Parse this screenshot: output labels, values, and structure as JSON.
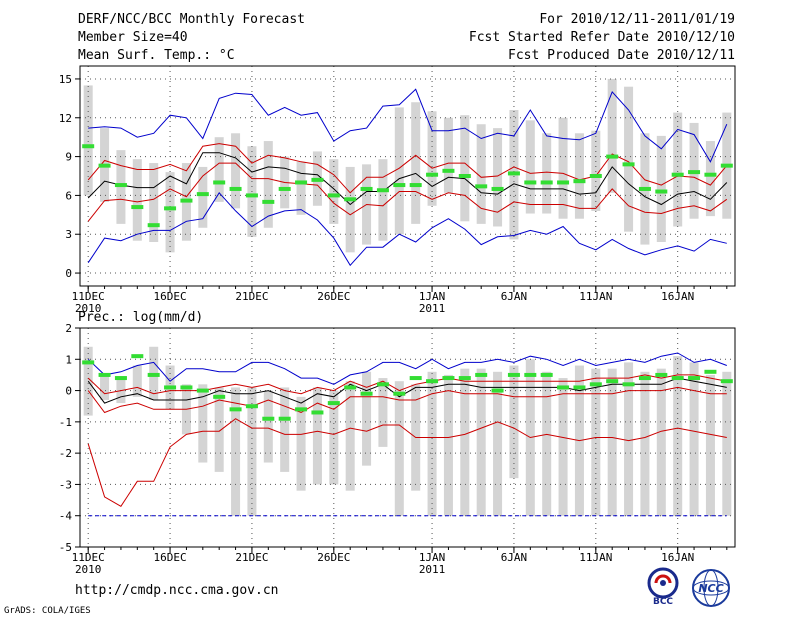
{
  "header": {
    "title": "DERF/NCC/BCC Monthly Forecast",
    "member_size": "Member Size=40",
    "variable": "Mean Surf. Temp.: °C",
    "for_range": "For 2010/12/11-2011/01/19",
    "fcst_started": "Fcst Started Refer Date 2010/12/10",
    "fcst_produced": "Fcst Produced Date 2010/12/11"
  },
  "footer": {
    "url": "http://cmdp.ncc.cma.gov.cn",
    "grads": "GrADS: COLA/IGES",
    "logo_bcc": "BCC",
    "logo_ncc": "NCC"
  },
  "colors": {
    "box": "#d4d4d4",
    "mean": "#000000",
    "spread": "#cc0000",
    "envelope": "#0000cc",
    "obs": "#33dd33",
    "grid": "#555555"
  },
  "chart_data": [
    {
      "type": "line",
      "title": "Mean Surf. Temp.: °C",
      "days": 40,
      "x_ticks": [
        {
          "day": 1,
          "label": "11DEC",
          "sub": "2010"
        },
        {
          "day": 6,
          "label": "16DEC",
          "sub": ""
        },
        {
          "day": 11,
          "label": "21DEC",
          "sub": ""
        },
        {
          "day": 16,
          "label": "26DEC",
          "sub": ""
        },
        {
          "day": 22,
          "label": "1JAN",
          "sub": "2011"
        },
        {
          "day": 27,
          "label": "6JAN",
          "sub": ""
        },
        {
          "day": 32,
          "label": "11JAN",
          "sub": ""
        },
        {
          "day": 37,
          "label": "16JAN",
          "sub": ""
        }
      ],
      "ylim": [
        -1,
        16
      ],
      "y_ticks": [
        0,
        3,
        6,
        9,
        12,
        15
      ],
      "series": [
        {
          "name": "box_top",
          "values": [
            14.5,
            11.2,
            9.5,
            8.8,
            8.5,
            7.8,
            8.5,
            8.2,
            10.5,
            10.8,
            9.8,
            10.2,
            9.0,
            8.6,
            9.4,
            8.8,
            8.2,
            8.4,
            8.8,
            12.8,
            13.2,
            12.5,
            12.0,
            12.2,
            11.5,
            11.2,
            12.6,
            11.8,
            10.8,
            12.0,
            10.8,
            11.0,
            15.0,
            14.4,
            10.8,
            10.6,
            12.4,
            11.6,
            10.2,
            12.4
          ]
        },
        {
          "name": "box_bottom",
          "values": [
            6.0,
            5.5,
            3.8,
            2.5,
            2.4,
            1.6,
            2.5,
            3.5,
            5.5,
            5.0,
            2.8,
            3.5,
            5.0,
            4.5,
            5.2,
            3.8,
            1.6,
            2.2,
            2.5,
            3.0,
            3.8,
            5.2,
            6.2,
            4.0,
            3.8,
            3.6,
            2.6,
            4.6,
            4.6,
            4.2,
            4.2,
            4.8,
            6.2,
            3.2,
            2.2,
            2.4,
            3.6,
            4.2,
            4.4,
            4.2
          ]
        },
        {
          "name": "max",
          "values": [
            0.8,
            2.7,
            2.5,
            3.0,
            3.3,
            3.3,
            4.0,
            4.2,
            6.2,
            4.8,
            3.6,
            4.4,
            4.8,
            4.9,
            4.1,
            2.7,
            0.6,
            2.0,
            2.0,
            3.0,
            2.4,
            3.5,
            4.2,
            3.4,
            2.2,
            2.8,
            2.9,
            3.3,
            3.0,
            3.6,
            2.3,
            1.8,
            2.6,
            1.9,
            1.4,
            1.8,
            2.1,
            1.7,
            2.6,
            2.3
          ]
        },
        {
          "name": "max",
          "values": [
            11.2,
            11.3,
            11.2,
            10.5,
            10.8,
            12.2,
            12.0,
            10.4,
            13.5,
            13.9,
            13.8,
            12.2,
            12.8,
            12.2,
            12.4,
            10.2,
            11.0,
            11.2,
            12.9,
            13.0,
            14.2,
            11.0,
            11.0,
            11.2,
            10.4,
            10.8,
            10.6,
            12.6,
            10.6,
            10.4,
            10.3,
            10.8,
            14.0,
            12.6,
            10.6,
            9.6,
            11.1,
            10.7,
            8.6,
            11.5
          ]
        },
        {
          "name": "mean_minus",
          "values": [
            4.0,
            5.6,
            5.7,
            5.5,
            5.7,
            6.5,
            5.9,
            7.5,
            8.5,
            8.5,
            7.3,
            7.3,
            7.0,
            6.9,
            6.8,
            5.4,
            4.5,
            5.3,
            5.2,
            6.3,
            6.3,
            5.7,
            6.2,
            6.0,
            5.0,
            4.7,
            5.5,
            5.3,
            5.3,
            5.3,
            5.0,
            5.0,
            6.5,
            5.2,
            4.7,
            4.6,
            5.0,
            5.2,
            4.8,
            5.7
          ]
        },
        {
          "name": "mean_plus",
          "values": [
            7.2,
            8.7,
            8.3,
            8.0,
            8.0,
            8.4,
            7.9,
            9.8,
            10.0,
            9.8,
            8.5,
            9.1,
            8.9,
            8.6,
            8.4,
            7.6,
            6.2,
            7.4,
            7.4,
            8.1,
            9.1,
            8.1,
            8.5,
            8.5,
            7.4,
            7.5,
            8.2,
            7.7,
            7.8,
            7.7,
            7.2,
            7.5,
            9.2,
            8.6,
            7.2,
            6.8,
            7.5,
            7.4,
            6.8,
            8.3
          ]
        },
        {
          "name": "mean",
          "values": [
            5.8,
            7.1,
            6.8,
            6.6,
            6.6,
            7.5,
            6.9,
            9.3,
            9.3,
            8.9,
            7.8,
            8.2,
            8.1,
            7.7,
            7.6,
            6.5,
            5.3,
            6.3,
            6.3,
            7.3,
            7.7,
            6.7,
            7.4,
            7.3,
            6.2,
            6.1,
            6.9,
            6.5,
            6.5,
            6.5,
            6.1,
            6.2,
            8.2,
            6.9,
            5.9,
            5.3,
            6.1,
            6.3,
            5.7,
            7.0
          ]
        },
        {
          "name": "obs",
          "values": [
            9.8,
            8.3,
            6.8,
            5.1,
            3.7,
            5.0,
            5.6,
            6.1,
            7.0,
            6.5,
            6.0,
            5.5,
            6.5,
            7.0,
            7.2,
            6.0,
            5.7,
            6.5,
            6.4,
            6.8,
            6.8,
            7.6,
            7.9,
            7.5,
            6.7,
            6.5,
            7.7,
            7.0,
            7.0,
            7.0,
            7.1,
            7.5,
            9.0,
            8.4,
            6.5,
            6.3,
            7.6,
            7.8,
            7.6,
            8.3
          ]
        }
      ]
    },
    {
      "type": "line",
      "title": "Prec.: log(mm/d)",
      "days": 40,
      "x_ticks": [
        {
          "day": 1,
          "label": "11DEC",
          "sub": "2010"
        },
        {
          "day": 6,
          "label": "16DEC",
          "sub": ""
        },
        {
          "day": 11,
          "label": "21DEC",
          "sub": ""
        },
        {
          "day": 16,
          "label": "26DEC",
          "sub": ""
        },
        {
          "day": 22,
          "label": "1JAN",
          "sub": "2011"
        },
        {
          "day": 27,
          "label": "6JAN",
          "sub": ""
        },
        {
          "day": 32,
          "label": "11JAN",
          "sub": ""
        },
        {
          "day": 37,
          "label": "16JAN",
          "sub": ""
        }
      ],
      "ylim": [
        -5,
        2
      ],
      "y_ticks": [
        -5,
        -4,
        -3,
        -2,
        -1,
        0,
        1,
        2
      ],
      "series": [
        {
          "name": "box_top",
          "values": [
            1.4,
            0.5,
            0.4,
            0.8,
            1.4,
            0.8,
            0.2,
            0.2,
            0.1,
            0.1,
            0.1,
            0.0,
            0.1,
            -0.2,
            0.1,
            0.0,
            0.3,
            0.6,
            0.4,
            0.3,
            0.2,
            0.6,
            0.5,
            0.7,
            0.7,
            0.6,
            0.8,
            1.0,
            0.6,
            0.4,
            0.8,
            0.7,
            0.7,
            0.9,
            0.6,
            0.7,
            1.1,
            0.9,
            0.5,
            0.6
          ]
        },
        {
          "name": "box_bottom",
          "values": [
            -0.8,
            -0.3,
            -0.4,
            -0.2,
            -0.3,
            -0.6,
            -1.4,
            -2.3,
            -2.6,
            -4.0,
            -4.0,
            -2.3,
            -2.6,
            -3.2,
            -3.0,
            -3.0,
            -3.2,
            -2.4,
            -1.8,
            -4.0,
            -3.2,
            -4.0,
            -4.0,
            -4.0,
            -4.0,
            -4.0,
            -2.8,
            -4.0,
            -4.0,
            -4.0,
            -4.0,
            -4.0,
            -4.0,
            -4.0,
            -4.0,
            -4.0,
            -4.0,
            -4.0,
            -4.0,
            -4.0
          ]
        },
        {
          "name": "min",
          "values": [
            -4.0,
            -4.0,
            -4.0,
            -4.0,
            -4.0,
            -4.0,
            -4.0,
            -4.0,
            -4.0,
            -4.0,
            -4.0,
            -4.0,
            -4.0,
            -4.0,
            -4.0,
            -4.0,
            -4.0,
            -4.0,
            -4.0,
            -4.0,
            -4.0,
            -4.0,
            -4.0,
            -4.0,
            -4.0,
            -4.0,
            -4.0,
            -4.0,
            -4.0,
            -4.0,
            -4.0,
            -4.0,
            -4.0,
            -4.0,
            -4.0,
            -4.0,
            -4.0,
            -4.0,
            -4.0,
            -4.0
          ]
        },
        {
          "name": "max",
          "values": [
            1.0,
            0.5,
            0.6,
            0.8,
            0.9,
            0.3,
            0.7,
            0.7,
            0.6,
            0.6,
            0.9,
            0.9,
            0.7,
            0.4,
            0.4,
            0.2,
            0.5,
            0.6,
            0.9,
            0.9,
            0.7,
            1.0,
            0.7,
            0.9,
            0.9,
            1.0,
            0.9,
            1.1,
            1.0,
            0.8,
            1.0,
            0.8,
            0.9,
            1.0,
            0.9,
            1.1,
            1.2,
            0.9,
            1.0,
            0.8
          ]
        },
        {
          "name": "p_low",
          "values": [
            -1.7,
            -3.4,
            -3.7,
            -2.9,
            -2.9,
            -1.8,
            -1.4,
            -1.3,
            -1.3,
            -0.9,
            -1.2,
            -1.2,
            -1.4,
            -1.4,
            -1.3,
            -1.4,
            -1.2,
            -1.3,
            -1.1,
            -1.1,
            -1.5,
            -1.5,
            -1.5,
            -1.4,
            -1.2,
            -1.0,
            -1.2,
            -1.5,
            -1.4,
            -1.5,
            -1.6,
            -1.5,
            -1.5,
            -1.6,
            -1.5,
            -1.3,
            -1.2,
            -1.3,
            -1.4,
            -1.5
          ]
        },
        {
          "name": "mean_minus",
          "values": [
            0.0,
            -0.7,
            -0.5,
            -0.4,
            -0.6,
            -0.6,
            -0.6,
            -0.5,
            -0.3,
            -0.4,
            -0.5,
            -0.3,
            -0.5,
            -0.7,
            -0.4,
            -0.6,
            -0.2,
            -0.2,
            -0.2,
            -0.3,
            -0.3,
            -0.1,
            0.0,
            -0.1,
            -0.1,
            -0.1,
            -0.2,
            -0.2,
            -0.2,
            -0.1,
            -0.1,
            -0.1,
            -0.1,
            0.0,
            0.0,
            0.0,
            0.1,
            0.0,
            -0.1,
            -0.1
          ]
        },
        {
          "name": "mean_plus",
          "values": [
            0.4,
            -0.1,
            0.0,
            0.1,
            -0.1,
            0.0,
            0.0,
            0.0,
            0.1,
            0.2,
            0.1,
            0.2,
            0.0,
            -0.1,
            0.1,
            0.0,
            0.3,
            0.1,
            0.3,
            0.0,
            0.2,
            0.3,
            0.4,
            0.3,
            0.3,
            0.3,
            0.3,
            0.3,
            0.3,
            0.3,
            0.3,
            0.4,
            0.4,
            0.4,
            0.5,
            0.4,
            0.5,
            0.5,
            0.4,
            0.3
          ]
        },
        {
          "name": "mean",
          "values": [
            0.3,
            -0.4,
            -0.2,
            -0.1,
            -0.3,
            -0.3,
            -0.3,
            -0.2,
            0.0,
            -0.1,
            -0.1,
            0.0,
            -0.2,
            -0.4,
            -0.1,
            -0.2,
            0.2,
            0.0,
            0.2,
            -0.2,
            0.1,
            0.1,
            0.2,
            0.2,
            0.1,
            0.1,
            0.1,
            0.1,
            0.1,
            0.1,
            0.0,
            0.1,
            0.2,
            0.2,
            0.2,
            0.2,
            0.4,
            0.3,
            0.2,
            0.1
          ]
        },
        {
          "name": "obs",
          "values": [
            0.9,
            0.5,
            0.4,
            1.1,
            0.5,
            0.1,
            0.1,
            0.0,
            -0.2,
            -0.6,
            -0.5,
            -0.9,
            -0.9,
            -0.6,
            -0.7,
            -0.4,
            0.1,
            -0.1,
            0.2,
            -0.1,
            0.4,
            0.3,
            0.4,
            0.4,
            0.5,
            0.0,
            0.5,
            0.5,
            0.5,
            0.1,
            0.1,
            0.2,
            0.3,
            0.2,
            0.4,
            0.5,
            0.4,
            0.4,
            0.6,
            0.3
          ]
        }
      ]
    }
  ]
}
